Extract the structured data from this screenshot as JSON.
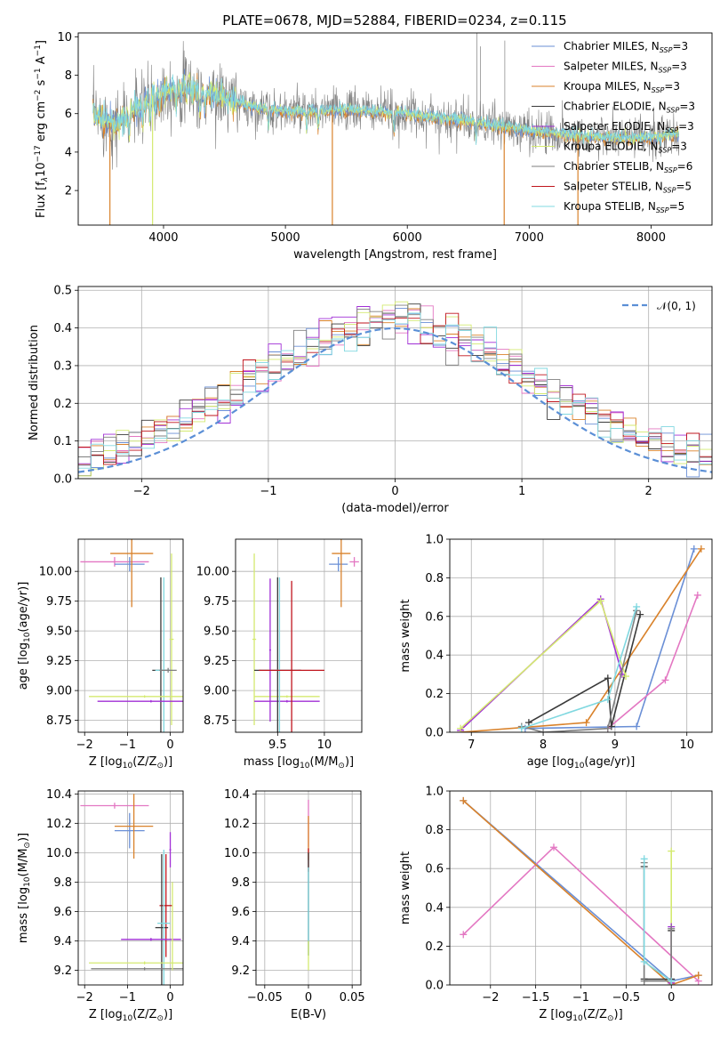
{
  "figure_title": "PLATE=0678, MJD=52884, FIBERID=0234, z=0.115",
  "colors": {
    "Chabrier MILES": "#6a8fd6",
    "Salpeter MILES": "#e377c2",
    "Kroupa MILES": "#d9822b",
    "Chabrier ELODIE": "#3a3a3a",
    "Salpeter ELODIE": "#a12fd6",
    "Kroupa ELODIE": "#d4ea70",
    "Chabrier STELIB": "#7f7f7f",
    "Salpeter STELIB": "#c0151d",
    "Kroupa STELIB": "#80d8e0",
    "data": "#808080",
    "normal": "#5b8fd6"
  },
  "chart_data": [
    {
      "id": "spectrum",
      "type": "line",
      "xlabel": "wavelength [Angstrom, rest frame]",
      "ylabel_parts": [
        "Flux [f",
        "λ",
        "10",
        "−17",
        " erg cm",
        "−2",
        " s",
        "−1",
        " A",
        "−1",
        "]"
      ],
      "xlim": [
        3300,
        8500
      ],
      "ylim": [
        0.2,
        10.2
      ],
      "xticks": [
        4000,
        5000,
        6000,
        7000,
        8000
      ],
      "yticks": [
        2,
        4,
        6,
        8,
        10
      ],
      "legend": [
        {
          "label": "Chabrier MILES, N",
          "sub": "SSP",
          "suffix": "=3"
        },
        {
          "label": "Salpeter MILES, N",
          "sub": "SSP",
          "suffix": "=3"
        },
        {
          "label": "Kroupa MILES, N",
          "sub": "SSP",
          "suffix": "=3"
        },
        {
          "label": "Chabrier ELODIE, N",
          "sub": "SSP",
          "suffix": "=3"
        },
        {
          "label": "Salpeter ELODIE, N",
          "sub": "SSP",
          "suffix": "=3"
        },
        {
          "label": "Kroupa ELODIE, N",
          "sub": "SSP",
          "suffix": "=3"
        },
        {
          "label": "Chabrier STELIB, N",
          "sub": "SSP",
          "suffix": "=6"
        },
        {
          "label": "Salpeter STELIB, N",
          "sub": "SSP",
          "suffix": "=5"
        },
        {
          "label": "Kroupa STELIB, N",
          "sub": "SSP",
          "suffix": "=5"
        }
      ],
      "legend_loc": "upper right",
      "continuum": [
        [
          3420,
          6.0
        ],
        [
          3600,
          5.4
        ],
        [
          3750,
          6.1
        ],
        [
          3900,
          6.9
        ],
        [
          4000,
          7.3
        ],
        [
          4200,
          7.3
        ],
        [
          4400,
          7.0
        ],
        [
          4700,
          6.4
        ],
        [
          5000,
          6.1
        ],
        [
          5500,
          6.2
        ],
        [
          6000,
          6.0
        ],
        [
          6500,
          5.6
        ],
        [
          7000,
          5.1
        ],
        [
          7500,
          4.8
        ],
        [
          8000,
          4.7
        ],
        [
          8230,
          5.0
        ]
      ],
      "grid": false
    },
    {
      "id": "residuals",
      "type": "histogram",
      "xlabel": "(data-model)/error",
      "ylabel": "Normed distribution",
      "xlim": [
        -2.5,
        2.5
      ],
      "ylim": [
        0,
        0.51
      ],
      "xticks": [
        -2,
        -1,
        0,
        1,
        2
      ],
      "yticks": [
        0.0,
        0.1,
        0.2,
        0.3,
        0.4,
        0.5
      ],
      "legend": "𝒩(0, 1)",
      "legend_loc": "upper right",
      "bin_width": 0.1,
      "bin_start": -2.5,
      "grid": true
    },
    {
      "id": "age_vs_Z",
      "type": "scatter",
      "xlabel_parts": [
        "Z [log",
        "10",
        "(Z/Z",
        "⊙",
        ")]"
      ],
      "ylabel_parts": [
        "age  [log",
        "10",
        "(age/yr)]"
      ],
      "xlim": [
        -2.15,
        0.3
      ],
      "ylim": [
        8.65,
        10.27
      ],
      "xticks": [
        -2,
        -1,
        0
      ],
      "yticks": [
        8.75,
        9.0,
        9.25,
        9.5,
        9.75,
        10.0
      ],
      "grid": true,
      "points": [
        {
          "series": "Salpeter MILES",
          "x": -1.3,
          "y": 10.08,
          "xerr": 0.8,
          "yerr": 0.04
        },
        {
          "series": "Chabrier MILES",
          "x": -0.95,
          "y": 10.06,
          "xerr": 0.35,
          "yerr": 0.06
        },
        {
          "series": "Kroupa MILES",
          "x": -0.9,
          "y": 10.15,
          "xerr": 0.5,
          "yerr": 0.45
        },
        {
          "series": "Chabrier ELODIE",
          "x": -0.22,
          "y": 9.17,
          "xerr": 0.2,
          "yerr": 0.78
        },
        {
          "series": "Kroupa STELIB",
          "x": -0.15,
          "y": 9.17,
          "xerr": 0.2,
          "yerr": 0.78
        },
        {
          "series": "Kroupa ELODIE",
          "x": 0.03,
          "y": 9.43,
          "xerr": 0.05,
          "yerr": 0.72
        },
        {
          "series": "Kroupa ELODIE",
          "x": -0.6,
          "y": 8.95,
          "xerr": 1.3,
          "yerr": 0.01
        },
        {
          "series": "Salpeter ELODIE",
          "x": -0.45,
          "y": 8.91,
          "xerr": 1.25,
          "yerr": 0.01
        },
        {
          "series": "Chabrier STELIB",
          "x": -0.05,
          "y": 9.17,
          "xerr": 0.2,
          "yerr": 0.02
        }
      ]
    },
    {
      "id": "age_vs_mass",
      "type": "scatter",
      "xlabel_parts": [
        "mass [log",
        "10",
        "(M/M",
        "⊙",
        ")]"
      ],
      "ylabel": "",
      "xlim": [
        9.05,
        10.4
      ],
      "ylim": [
        8.65,
        10.27
      ],
      "xticks": [
        9.5,
        10.0
      ],
      "yticks": [
        8.75,
        9.0,
        9.25,
        9.5,
        9.75,
        10.0
      ],
      "grid": true,
      "points": [
        {
          "series": "Salpeter MILES",
          "x": 10.32,
          "y": 10.08,
          "xerr": 0.05,
          "yerr": 0.04
        },
        {
          "series": "Chabrier MILES",
          "x": 10.15,
          "y": 10.06,
          "xerr": 0.1,
          "yerr": 0.06
        },
        {
          "series": "Kroupa MILES",
          "x": 10.18,
          "y": 10.15,
          "xerr": 0.1,
          "yerr": 0.45
        },
        {
          "series": "Kroupa ELODIE",
          "x": 9.25,
          "y": 9.43,
          "xerr": 0.02,
          "yerr": 0.72
        },
        {
          "series": "Kroupa ELODIE",
          "x": 9.6,
          "y": 8.95,
          "xerr": 0.35,
          "yerr": 0.01
        },
        {
          "series": "Salpeter ELODIE",
          "x": 9.6,
          "y": 8.91,
          "xerr": 0.35,
          "yerr": 0.01
        },
        {
          "series": "Salpeter ELODIE",
          "x": 9.42,
          "y": 9.34,
          "xerr": 0.01,
          "yerr": 0.6
        },
        {
          "series": "Chabrier ELODIE",
          "x": 9.5,
          "y": 9.17,
          "xerr": 0.25,
          "yerr": 0.78
        },
        {
          "series": "Kroupa STELIB",
          "x": 9.52,
          "y": 9.17,
          "xerr": 0.2,
          "yerr": 0.78
        },
        {
          "series": "Salpeter STELIB",
          "x": 9.65,
          "y": 9.17,
          "xerr": 0.35,
          "yerr": 0.75
        }
      ]
    },
    {
      "id": "weight_vs_age",
      "type": "line",
      "xlabel_parts": [
        "age  [log",
        "10",
        "(age/yr)]"
      ],
      "ylabel": "mass weight",
      "xlim": [
        6.7,
        10.35
      ],
      "ylim": [
        0,
        1.0
      ],
      "xticks": [
        7,
        8,
        9,
        10
      ],
      "yticks": [
        0.0,
        0.2,
        0.4,
        0.6,
        0.8,
        1.0
      ],
      "grid": true,
      "series": [
        {
          "name": "Chabrier MILES",
          "points": [
            [
              7.75,
              0.02
            ],
            [
              9.3,
              0.03
            ],
            [
              10.1,
              0.95
            ]
          ]
        },
        {
          "name": "Salpeter MILES",
          "points": [
            [
              8.9,
              0.02
            ],
            [
              9.7,
              0.27
            ],
            [
              10.15,
              0.71
            ]
          ]
        },
        {
          "name": "Kroupa MILES",
          "points": [
            [
              6.85,
              0.0
            ],
            [
              8.6,
              0.05
            ],
            [
              10.2,
              0.95
            ]
          ]
        },
        {
          "name": "Chabrier ELODIE",
          "points": [
            [
              7.8,
              0.05
            ],
            [
              8.9,
              0.28
            ],
            [
              8.95,
              0.03
            ],
            [
              9.35,
              0.61
            ]
          ]
        },
        {
          "name": "Salpeter ELODIE",
          "points": [
            [
              6.85,
              0.01
            ],
            [
              8.8,
              0.69
            ],
            [
              9.1,
              0.3
            ]
          ]
        },
        {
          "name": "Kroupa ELODIE",
          "points": [
            [
              6.85,
              0.02
            ],
            [
              8.8,
              0.68
            ],
            [
              9.15,
              0.29
            ]
          ]
        },
        {
          "name": "Chabrier STELIB",
          "points": [
            [
              7.7,
              0.03
            ],
            [
              8.0,
              0.0
            ],
            [
              8.9,
              0.02
            ],
            [
              9.3,
              0.63
            ]
          ]
        },
        {
          "name": "Kroupa STELIB",
          "points": [
            [
              7.7,
              0.02
            ],
            [
              8.9,
              0.17
            ],
            [
              9.3,
              0.65
            ]
          ]
        }
      ]
    },
    {
      "id": "mass_vs_Z",
      "type": "scatter",
      "xlabel_parts": [
        "Z [log",
        "10",
        "(Z/Z",
        "⊙",
        ")]"
      ],
      "ylabel_parts": [
        "mass [log",
        "10",
        "(M/M",
        "⊙",
        ")]"
      ],
      "xlim": [
        -2.15,
        0.3
      ],
      "ylim": [
        9.1,
        10.42
      ],
      "xticks": [
        -2,
        -1,
        0
      ],
      "yticks": [
        9.2,
        9.4,
        9.6,
        9.8,
        10.0,
        10.2,
        10.4
      ],
      "grid": true,
      "points": [
        {
          "series": "Salpeter MILES",
          "x": -1.3,
          "y": 10.32,
          "xerr": 0.8,
          "yerr": 0.02
        },
        {
          "series": "Chabrier MILES",
          "x": -0.95,
          "y": 10.15,
          "xerr": 0.35,
          "yerr": 0.12
        },
        {
          "series": "Kroupa MILES",
          "x": -0.85,
          "y": 10.18,
          "xerr": 0.45,
          "yerr": 0.22
        },
        {
          "series": "Salpeter ELODIE",
          "x": 0.0,
          "y": 10.02,
          "xerr": 0.02,
          "yerr": 0.12
        },
        {
          "series": "Salpeter STELIB",
          "x": -0.1,
          "y": 9.64,
          "xerr": 0.15,
          "yerr": 0.35
        },
        {
          "series": "Chabrier ELODIE",
          "x": -0.2,
          "y": 9.49,
          "xerr": 0.15,
          "yerr": 0.5
        },
        {
          "series": "Kroupa STELIB",
          "x": -0.15,
          "y": 9.52,
          "xerr": 0.15,
          "yerr": 0.5
        },
        {
          "series": "Salpeter ELODIE",
          "x": -0.45,
          "y": 9.41,
          "xerr": 0.7,
          "yerr": 0.01
        },
        {
          "series": "Kroupa ELODIE",
          "x": -0.6,
          "y": 9.25,
          "xerr": 1.3,
          "yerr": 0.01
        },
        {
          "series": "Chabrier STELIB",
          "x": -0.6,
          "y": 9.21,
          "xerr": 1.25,
          "yerr": 0.01
        },
        {
          "series": "Kroupa ELODIE",
          "x": 0.05,
          "y": 9.5,
          "xerr": 0.01,
          "yerr": 0.3
        }
      ]
    },
    {
      "id": "mass_vs_ebv",
      "type": "scatter",
      "xlabel": "E(B-V)",
      "ylabel": "",
      "xlim": [
        -0.06,
        0.06
      ],
      "ylim": [
        9.1,
        10.42
      ],
      "xticks": [
        -0.05,
        0.0,
        0.05
      ],
      "yticks": [
        9.2,
        9.4,
        9.6,
        9.8,
        10.0,
        10.2,
        10.4
      ],
      "grid": true,
      "points": [
        {
          "series": "Salpeter MILES",
          "x": 0.0,
          "y": 10.2,
          "xerr": 0.0005,
          "yerr": 0.16
        },
        {
          "series": "Kroupa MILES",
          "x": 0.0,
          "y": 10.1,
          "xerr": 0.0005,
          "yerr": 0.15
        },
        {
          "series": "Salpeter STELIB",
          "x": 0.0,
          "y": 9.95,
          "xerr": 0.0005,
          "yerr": 0.08
        },
        {
          "series": "Chabrier ELODIE",
          "x": 0.0,
          "y": 9.65,
          "xerr": 0.0005,
          "yerr": 0.35
        },
        {
          "series": "Kroupa STELIB",
          "x": 0.0,
          "y": 9.6,
          "xerr": 0.0005,
          "yerr": 0.3
        },
        {
          "series": "Kroupa ELODIE",
          "x": 0.0,
          "y": 9.3,
          "xerr": 0.0005,
          "yerr": 0.1
        }
      ]
    },
    {
      "id": "weight_vs_Z",
      "type": "line",
      "xlabel_parts": [
        "Z [log",
        "10",
        "(Z/Z",
        "⊙",
        ")]"
      ],
      "ylabel": "mass weight",
      "xlim": [
        -2.45,
        0.45
      ],
      "ylim": [
        0,
        1.0
      ],
      "xticks": [
        -2.0,
        -1.5,
        -1.0,
        -0.5,
        0.0
      ],
      "yticks": [
        0.0,
        0.2,
        0.4,
        0.6,
        0.8,
        1.0
      ],
      "grid": true,
      "series": [
        {
          "name": "Chabrier MILES",
          "points": [
            [
              -2.3,
              0.95
            ],
            [
              0.0,
              0.02
            ],
            [
              0.3,
              0.05
            ]
          ]
        },
        {
          "name": "Salpeter MILES",
          "points": [
            [
              -2.3,
              0.26
            ],
            [
              -1.3,
              0.71
            ],
            [
              0.3,
              0.02
            ]
          ]
        },
        {
          "name": "Kroupa MILES",
          "points": [
            [
              -2.3,
              0.95
            ],
            [
              0.0,
              0.0
            ],
            [
              0.3,
              0.05
            ]
          ]
        },
        {
          "name": "Chabrier ELODIE",
          "points": [
            [
              -0.3,
              0.61
            ],
            [
              -0.3,
              0.03
            ],
            [
              0.0,
              0.03
            ],
            [
              0.0,
              0.28
            ]
          ]
        },
        {
          "name": "Kroupa ELODIE",
          "points": [
            [
              0.0,
              0.69
            ],
            [
              0.0,
              0.01
            ]
          ]
        },
        {
          "name": "Salpeter ELODIE",
          "points": [
            [
              0.0,
              0.3
            ],
            [
              0.0,
              0.01
            ]
          ]
        },
        {
          "name": "Chabrier STELIB",
          "points": [
            [
              -0.3,
              0.63
            ],
            [
              -0.3,
              0.02
            ],
            [
              0.0,
              0.02
            ],
            [
              0.0,
              0.29
            ]
          ]
        },
        {
          "name": "Kroupa STELIB",
          "points": [
            [
              -0.3,
              0.65
            ],
            [
              -0.3,
              0.12
            ],
            [
              0.0,
              0.02
            ],
            [
              0.0,
              0.0
            ]
          ]
        }
      ]
    }
  ]
}
